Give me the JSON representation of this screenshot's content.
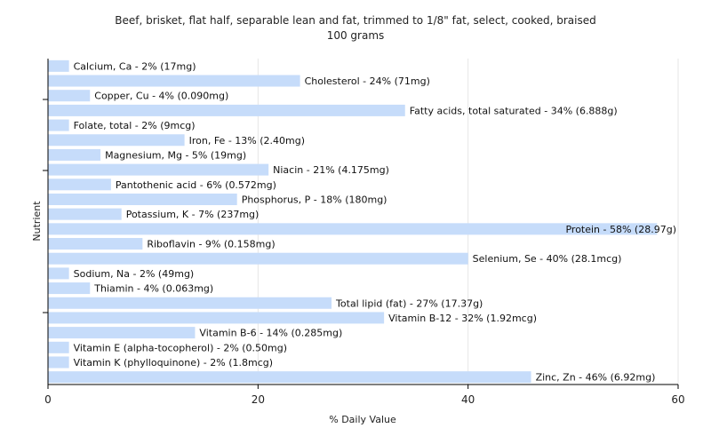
{
  "chart_data": {
    "type": "bar",
    "orientation": "horizontal",
    "title": "Beef, brisket, flat half, separable lean and fat, trimmed to 1/8\" fat, select, cooked, braised",
    "subtitle": "100 grams",
    "xlabel": "% Daily Value",
    "ylabel": "Nutrient",
    "xlim": [
      0,
      60
    ],
    "xticks": [
      "0",
      "20",
      "40",
      "60"
    ],
    "grid": true,
    "bar_color": "#c6dcfa",
    "categories": [
      "Calcium, Ca",
      "Cholesterol",
      "Copper, Cu",
      "Fatty acids, total saturated",
      "Folate, total",
      "Iron, Fe",
      "Magnesium, Mg",
      "Niacin",
      "Pantothenic acid",
      "Phosphorus, P",
      "Potassium, K",
      "Protein",
      "Riboflavin",
      "Selenium, Se",
      "Sodium, Na",
      "Thiamin",
      "Total lipid (fat)",
      "Vitamin B-12",
      "Vitamin B-6",
      "Vitamin E (alpha-tocopherol)",
      "Vitamin K (phylloquinone)",
      "Zinc, Zn"
    ],
    "values": [
      2,
      24,
      4,
      34,
      2,
      13,
      5,
      21,
      6,
      18,
      7,
      58,
      9,
      40,
      2,
      4,
      27,
      32,
      14,
      2,
      2,
      46
    ],
    "labels": [
      "Calcium, Ca - 2% (17mg)",
      "Cholesterol - 24% (71mg)",
      "Copper, Cu - 4% (0.090mg)",
      "Fatty acids, total saturated - 34% (6.888g)",
      "Folate, total - 2% (9mcg)",
      "Iron, Fe - 13% (2.40mg)",
      "Magnesium, Mg - 5% (19mg)",
      "Niacin - 21% (4.175mg)",
      "Pantothenic acid - 6% (0.572mg)",
      "Phosphorus, P - 18% (180mg)",
      "Potassium, K - 7% (237mg)",
      "Protein - 58% (28.97g)",
      "Riboflavin - 9% (0.158mg)",
      "Selenium, Se - 40% (28.1mcg)",
      "Sodium, Na - 2% (49mg)",
      "Thiamin - 4% (0.063mg)",
      "Total lipid (fat) - 27% (17.37g)",
      "Vitamin B-12 - 32% (1.92mcg)",
      "Vitamin B-6 - 14% (0.285mg)",
      "Vitamin E (alpha-tocopherol) - 2% (0.50mg)",
      "Vitamin K (phylloquinone) - 2% (1.8mcg)",
      "Zinc, Zn - 46% (6.92mg)"
    ]
  }
}
